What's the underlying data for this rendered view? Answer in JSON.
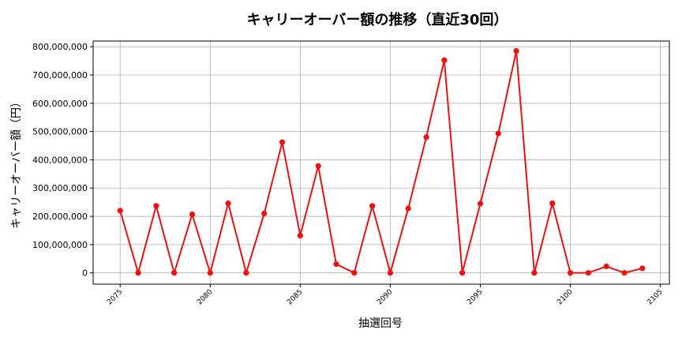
{
  "chart_data": {
    "type": "line",
    "title": "キャリーオーバー額の推移（直近30回）",
    "xlabel": "抽選回号",
    "ylabel": "キャリーオーバー額（円）",
    "xlim": [
      2073.5,
      2105.5
    ],
    "ylim": [
      -40000000,
      820000000
    ],
    "xticks": [
      2075,
      2080,
      2085,
      2090,
      2095,
      2100,
      2105
    ],
    "yticks": [
      0,
      100000000,
      200000000,
      300000000,
      400000000,
      500000000,
      600000000,
      700000000,
      800000000
    ],
    "ytick_labels": [
      "0",
      "100,000,000",
      "200,000,000",
      "300,000,000",
      "400,000,000",
      "500,000,000",
      "600,000,000",
      "700,000,000",
      "800,000,000"
    ],
    "grid": true,
    "color": "#ee1111",
    "x": [
      2075,
      2076,
      2077,
      2078,
      2079,
      2080,
      2081,
      2082,
      2083,
      2084,
      2085,
      2086,
      2087,
      2088,
      2089,
      2090,
      2091,
      2092,
      2093,
      2094,
      2095,
      2096,
      2097,
      2098,
      2099,
      2100,
      2101,
      2102,
      2103,
      2104
    ],
    "y": [
      220000000,
      0,
      237000000,
      0,
      207000000,
      0,
      246000000,
      0,
      210000000,
      462000000,
      132000000,
      378000000,
      31000000,
      0,
      237000000,
      0,
      228000000,
      480000000,
      752000000,
      0,
      245000000,
      493000000,
      785000000,
      0,
      246000000,
      0,
      0,
      23000000,
      0,
      16000000
    ]
  }
}
